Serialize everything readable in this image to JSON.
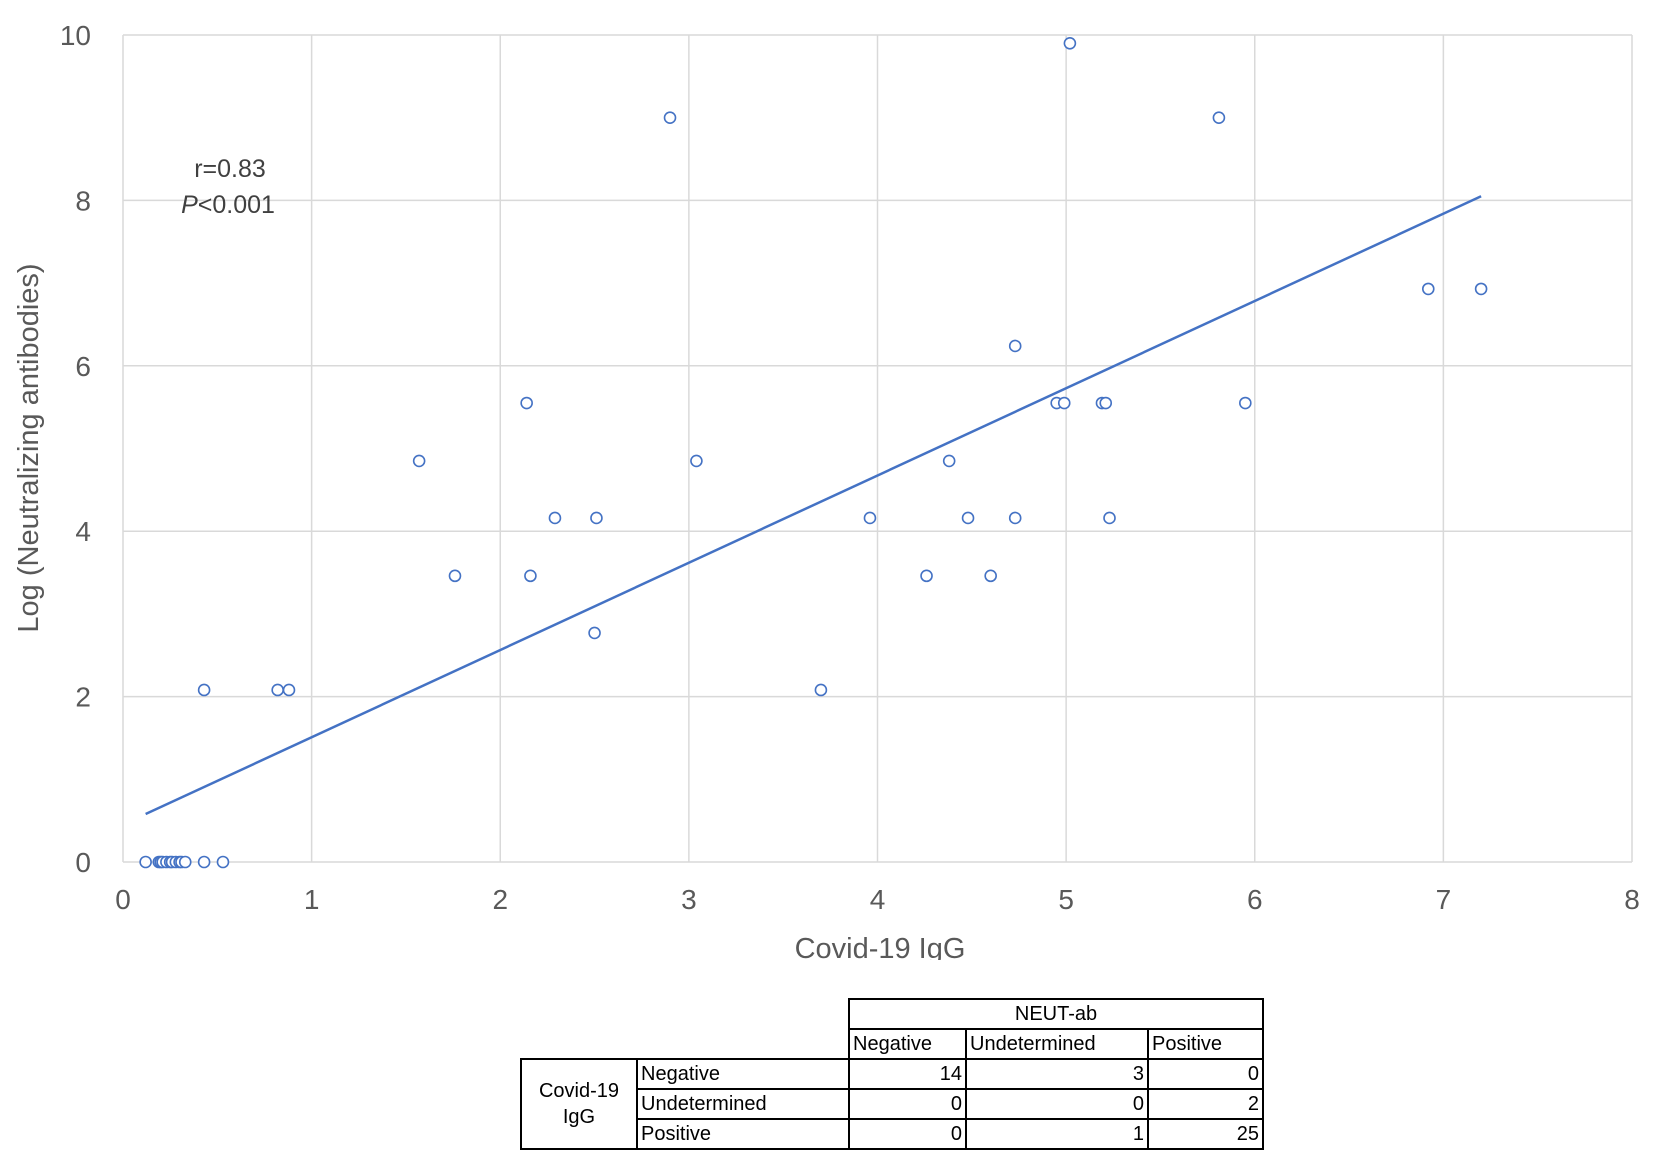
{
  "chart_data": {
    "type": "scatter",
    "xlabel": "Covid-19 IgG",
    "ylabel": "Log (Neutralizing antibodies)",
    "xlim": [
      0,
      8
    ],
    "ylim": [
      0,
      10
    ],
    "xticks": [
      "0",
      "1",
      "2",
      "3",
      "4",
      "5",
      "6",
      "7",
      "8"
    ],
    "yticks": [
      "0",
      "2",
      "4",
      "6",
      "8",
      "10"
    ],
    "grid": true,
    "marker_color": "#4472C4",
    "trendline_color": "#4472C4",
    "annotation": {
      "r": "r=0.83",
      "p_italic": "P",
      "p_rest": "<0.001"
    },
    "trendline": {
      "x": [
        0.12,
        7.2
      ],
      "y": [
        0.58,
        8.05
      ]
    },
    "points": [
      {
        "x": 0.12,
        "y": 0
      },
      {
        "x": 0.19,
        "y": 0
      },
      {
        "x": 0.2,
        "y": 0
      },
      {
        "x": 0.21,
        "y": 0
      },
      {
        "x": 0.23,
        "y": 0
      },
      {
        "x": 0.25,
        "y": 0
      },
      {
        "x": 0.26,
        "y": 0
      },
      {
        "x": 0.28,
        "y": 0
      },
      {
        "x": 0.3,
        "y": 0
      },
      {
        "x": 0.31,
        "y": 0
      },
      {
        "x": 0.33,
        "y": 0
      },
      {
        "x": 0.43,
        "y": 0
      },
      {
        "x": 0.53,
        "y": 0
      },
      {
        "x": 0.43,
        "y": 2.08
      },
      {
        "x": 0.82,
        "y": 2.08
      },
      {
        "x": 0.88,
        "y": 2.08
      },
      {
        "x": 1.57,
        "y": 4.85
      },
      {
        "x": 1.76,
        "y": 3.46
      },
      {
        "x": 2.14,
        "y": 5.55
      },
      {
        "x": 2.16,
        "y": 3.46
      },
      {
        "x": 2.29,
        "y": 4.16
      },
      {
        "x": 2.5,
        "y": 2.77
      },
      {
        "x": 2.51,
        "y": 4.16
      },
      {
        "x": 2.9,
        "y": 9.0
      },
      {
        "x": 3.04,
        "y": 4.85
      },
      {
        "x": 3.7,
        "y": 2.08
      },
      {
        "x": 3.96,
        "y": 4.16
      },
      {
        "x": 4.26,
        "y": 3.46
      },
      {
        "x": 4.38,
        "y": 4.85
      },
      {
        "x": 4.48,
        "y": 4.16
      },
      {
        "x": 4.6,
        "y": 3.46
      },
      {
        "x": 4.73,
        "y": 6.24
      },
      {
        "x": 4.73,
        "y": 4.16
      },
      {
        "x": 4.95,
        "y": 5.55
      },
      {
        "x": 4.99,
        "y": 5.55
      },
      {
        "x": 5.02,
        "y": 9.9
      },
      {
        "x": 5.19,
        "y": 5.55
      },
      {
        "x": 5.21,
        "y": 5.55
      },
      {
        "x": 5.23,
        "y": 4.16
      },
      {
        "x": 5.81,
        "y": 9.0
      },
      {
        "x": 5.95,
        "y": 5.55
      },
      {
        "x": 6.92,
        "y": 6.93
      },
      {
        "x": 7.2,
        "y": 6.93
      }
    ]
  },
  "table": {
    "col_group": "NEUT-ab",
    "col_headers": [
      "Negative",
      "Undetermined",
      "Positive"
    ],
    "row_group_line1": "Covid-19",
    "row_group_line2": "IgG",
    "rows": [
      {
        "label": "Negative",
        "values": [
          "14",
          "3",
          "0"
        ]
      },
      {
        "label": "Undetermined",
        "values": [
          "0",
          "0",
          "2"
        ]
      },
      {
        "label": "Positive",
        "values": [
          "0",
          "1",
          "25"
        ]
      }
    ]
  }
}
